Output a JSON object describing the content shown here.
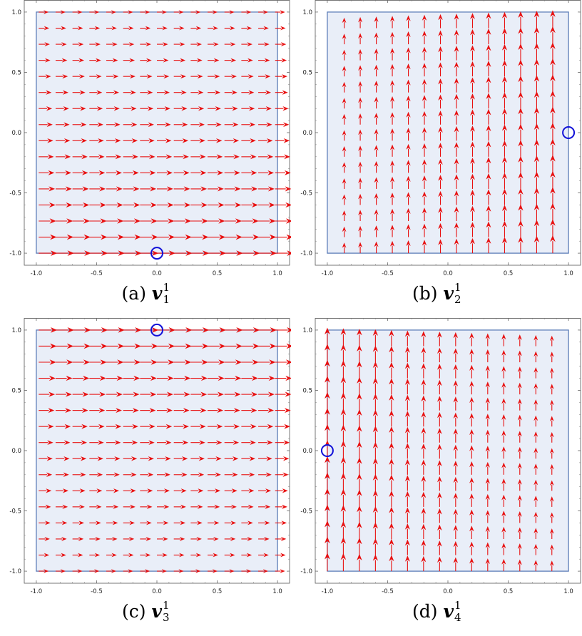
{
  "chart_data": [
    {
      "type": "vector_field",
      "caption_label": "(a)",
      "vector_symbol": "v",
      "superscript": "1",
      "subscript": "1",
      "direction": "x",
      "magnitude_trend": "increases toward y = -1",
      "marked_point": [
        0,
        -1
      ],
      "region": {
        "x": [
          -1,
          1
        ],
        "y": [
          -1,
          1
        ]
      },
      "xlim": [
        -1.1,
        1.1
      ],
      "ylim": [
        -1.1,
        1.1
      ],
      "xticks": [
        "-1.0",
        "-0.5",
        "0.0",
        "0.5",
        "1.0"
      ],
      "yticks": [
        "-1.0",
        "-0.5",
        "0.0",
        "0.5",
        "1.0"
      ],
      "grid": false
    },
    {
      "type": "vector_field",
      "caption_label": "(b)",
      "vector_symbol": "v",
      "superscript": "1",
      "subscript": "2",
      "direction": "y",
      "magnitude_trend": "increases toward x = 1",
      "marked_point": [
        1,
        0
      ],
      "region": {
        "x": [
          -1,
          1
        ],
        "y": [
          -1,
          1
        ]
      },
      "xlim": [
        -1.1,
        1.1
      ],
      "ylim": [
        -1.1,
        1.1
      ],
      "xticks": [
        "-1.0",
        "-0.5",
        "0.0",
        "0.5",
        "1.0"
      ],
      "yticks": [
        "-1.0",
        "-0.5",
        "0.0",
        "0.5",
        "1.0"
      ],
      "grid": false
    },
    {
      "type": "vector_field",
      "caption_label": "(c)",
      "vector_symbol": "v",
      "superscript": "1",
      "subscript": "3",
      "direction": "x",
      "magnitude_trend": "increases toward y = 1",
      "marked_point": [
        0,
        1
      ],
      "region": {
        "x": [
          -1,
          1
        ],
        "y": [
          -1,
          1
        ]
      },
      "xlim": [
        -1.1,
        1.1
      ],
      "ylim": [
        -1.1,
        1.1
      ],
      "xticks": [
        "-1.0",
        "-0.5",
        "0.0",
        "0.5",
        "1.0"
      ],
      "yticks": [
        "-1.0",
        "-0.5",
        "0.0",
        "0.5",
        "1.0"
      ],
      "grid": false
    },
    {
      "type": "vector_field",
      "caption_label": "(d)",
      "vector_symbol": "v",
      "superscript": "1",
      "subscript": "4",
      "direction": "y",
      "magnitude_trend": "increases toward x = -1",
      "marked_point": [
        -1,
        0
      ],
      "region": {
        "x": [
          -1,
          1
        ],
        "y": [
          -1,
          1
        ]
      },
      "xlim": [
        -1.1,
        1.1
      ],
      "ylim": [
        -1.1,
        1.1
      ],
      "xticks": [
        "-1.0",
        "-0.5",
        "0.0",
        "0.5",
        "1.0"
      ],
      "yticks": [
        "-1.0",
        "-0.5",
        "0.0",
        "0.5",
        "1.0"
      ],
      "grid": false
    }
  ],
  "style": {
    "arrow_color": "#e81010",
    "region_fill": "#e9eef8",
    "region_stroke": "#5b7db8",
    "marker_color": "#1010d8",
    "frame_color": "#555555"
  }
}
